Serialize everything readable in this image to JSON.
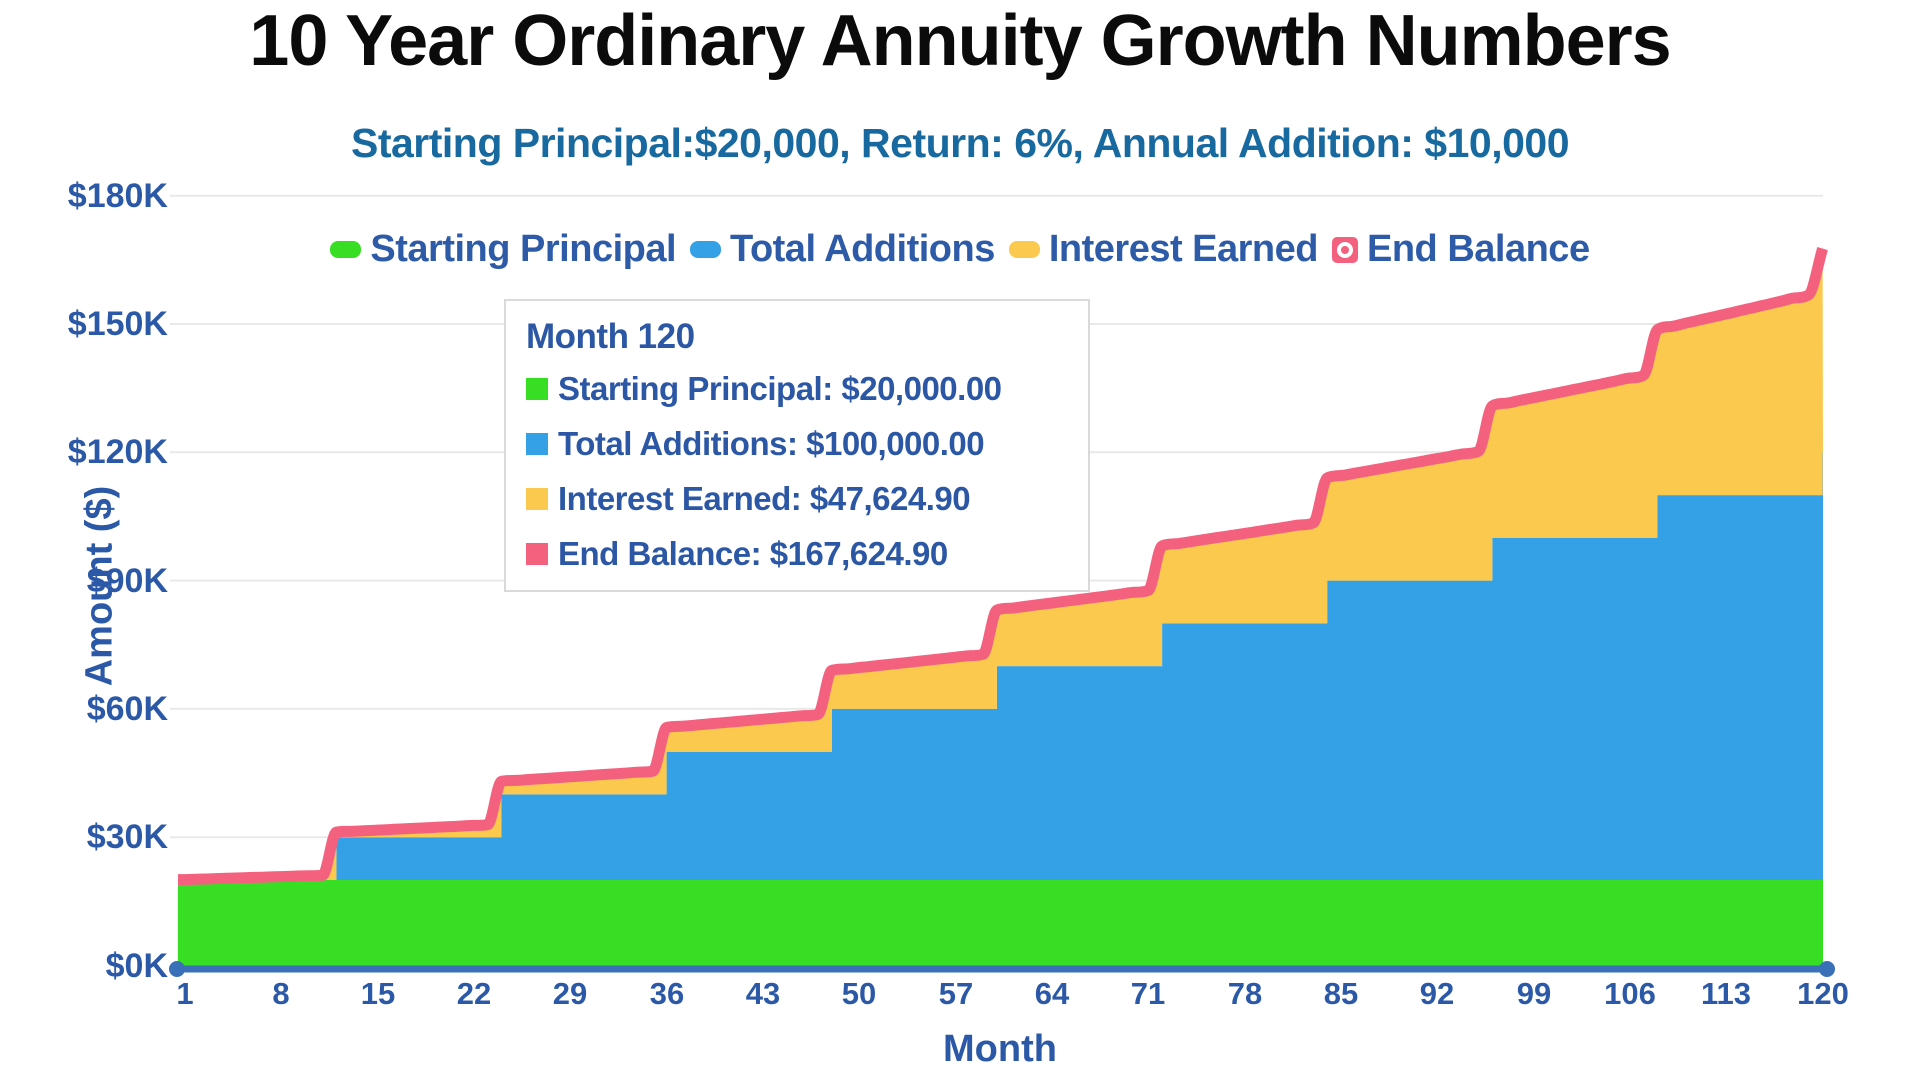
{
  "title": "10 Year Ordinary Annuity Growth Numbers",
  "subtitle": "Starting Principal:$20,000, Return: 6%, Annual Addition: $10,000",
  "legend": {
    "items": [
      {
        "label": "Starting Principal",
        "color": "#37de23",
        "marker": "pill"
      },
      {
        "label": "Total Additions",
        "color": "#34a1e7",
        "marker": "pill"
      },
      {
        "label": "Interest Earned",
        "color": "#fbc94d",
        "marker": "pill"
      },
      {
        "label": "End Balance",
        "color": "#f4617f",
        "marker": "square-ring"
      }
    ]
  },
  "tooltip": {
    "title": "Month 120",
    "rows": [
      {
        "text": "Starting Principal: $20,000.00",
        "color": "#37de23"
      },
      {
        "text": "Total Additions: $100,000.00",
        "color": "#34a1e7"
      },
      {
        "text": "Interest Earned: $47,624.90",
        "color": "#fbc94d"
      },
      {
        "text": "End Balance: $167,624.90",
        "color": "#f4617f"
      }
    ]
  },
  "axes": {
    "x_title": "Month",
    "y_title": "Amount ($)",
    "x_ticks": [
      1,
      8,
      15,
      22,
      29,
      36,
      43,
      50,
      57,
      64,
      71,
      78,
      85,
      92,
      99,
      106,
      113,
      120
    ],
    "y_tick_values": [
      0,
      30000,
      60000,
      90000,
      120000,
      150000,
      180000
    ],
    "y_tick_labels": [
      "$0K",
      "$30K",
      "$60K",
      "$90K",
      "$120K",
      "$150K",
      "$180K"
    ]
  },
  "colors": {
    "grid": "#e9e9e9",
    "axis_line": "#3a70b8",
    "text_blue": "#2c59a7",
    "subtitle_blue": "#17699f"
  },
  "chart_data": {
    "type": "area",
    "stacked": true,
    "grid": "horizontal",
    "legend_position": "top",
    "title": "10 Year Ordinary Annuity Growth Numbers",
    "subtitle": "Starting Principal:$20,000, Return: 6%, Annual Addition: $10,000",
    "xlabel": "Month",
    "ylabel": "Amount ($)",
    "xlim": [
      1,
      120
    ],
    "ylim": [
      0,
      180000
    ],
    "months": [
      1,
      2,
      3,
      4,
      5,
      6,
      7,
      8,
      9,
      10,
      11,
      12,
      13,
      14,
      15,
      16,
      17,
      18,
      19,
      20,
      21,
      22,
      23,
      24,
      25,
      26,
      27,
      28,
      29,
      30,
      31,
      32,
      33,
      34,
      35,
      36,
      37,
      38,
      39,
      40,
      41,
      42,
      43,
      44,
      45,
      46,
      47,
      48,
      49,
      50,
      51,
      52,
      53,
      54,
      55,
      56,
      57,
      58,
      59,
      60,
      61,
      62,
      63,
      64,
      65,
      66,
      67,
      68,
      69,
      70,
      71,
      72,
      73,
      74,
      75,
      76,
      77,
      78,
      79,
      80,
      81,
      82,
      83,
      84,
      85,
      86,
      87,
      88,
      89,
      90,
      91,
      92,
      93,
      94,
      95,
      96,
      97,
      98,
      99,
      100,
      101,
      102,
      103,
      104,
      105,
      106,
      107,
      108,
      109,
      110,
      111,
      112,
      113,
      114,
      115,
      116,
      117,
      118,
      119,
      120
    ],
    "series": [
      {
        "name": "Starting Principal",
        "color": "#37de23",
        "constant": 20000
      },
      {
        "name": "Total Additions",
        "color": "#34a1e7",
        "step": true,
        "values": [
          0,
          0,
          0,
          0,
          0,
          0,
          0,
          0,
          0,
          0,
          0,
          10000,
          10000,
          10000,
          10000,
          10000,
          10000,
          10000,
          10000,
          10000,
          10000,
          10000,
          10000,
          20000,
          20000,
          20000,
          20000,
          20000,
          20000,
          20000,
          20000,
          20000,
          20000,
          20000,
          20000,
          30000,
          30000,
          30000,
          30000,
          30000,
          30000,
          30000,
          30000,
          30000,
          30000,
          30000,
          30000,
          40000,
          40000,
          40000,
          40000,
          40000,
          40000,
          40000,
          40000,
          40000,
          40000,
          40000,
          40000,
          50000,
          50000,
          50000,
          50000,
          50000,
          50000,
          50000,
          50000,
          50000,
          50000,
          50000,
          50000,
          60000,
          60000,
          60000,
          60000,
          60000,
          60000,
          60000,
          60000,
          60000,
          60000,
          60000,
          60000,
          70000,
          70000,
          70000,
          70000,
          70000,
          70000,
          70000,
          70000,
          70000,
          70000,
          70000,
          70000,
          80000,
          80000,
          80000,
          80000,
          80000,
          80000,
          80000,
          80000,
          80000,
          80000,
          80000,
          80000,
          90000,
          90000,
          90000,
          90000,
          90000,
          90000,
          90000,
          90000,
          90000,
          90000,
          90000,
          90000,
          100000
        ]
      },
      {
        "name": "Interest Earned",
        "color": "#fbc94d",
        "values": [
          97.35,
          195.18,
          293.48,
          392.26,
          491.52,
          591.26,
          691.49,
          792.21,
          893.42,
          995.12,
          1097.32,
          1200.0,
          1351.87,
          1504.47,
          1657.82,
          1811.92,
          1966.76,
          2122.37,
          2278.72,
          2435.85,
          2593.73,
          2752.39,
          2911.82,
          3072.0,
          3281.66,
          3492.35,
          3704.07,
          3916.8,
          4130.58,
          4345.4,
          4561.27,
          4778.19,
          4996.16,
          5215.2,
          5435.31,
          5656.32,
          5927.24,
          6199.48,
          6473.04,
          6747.94,
          7024.17,
          7301.75,
          7580.68,
          7860.97,
          8142.62,
          8425.65,
          8710.05,
          8995.7,
          9331.53,
          9668.99,
          10008.09,
          10348.85,
          10691.26,
          11035.34,
          11381.1,
          11728.54,
          12077.67,
          12428.5,
          12781.04,
          13135.44,
          13540.1,
          13946.73,
          14355.33,
          14765.93,
          15178.52,
          15593.12,
          16009.74,
          16428.38,
          16849.06,
          17271.79,
          17696.58,
          18123.57,
          18601.19,
          19081.13,
          19563.41,
          20048.03,
          20535.02,
          21024.37,
          21516.11,
          22010.24,
          22506.78,
          23005.73,
          23507.11,
          24010.98,
          24565.93,
          25123.57,
          25683.93,
          26247.02,
          26812.85,
          27381.43,
          27952.78,
          28526.91,
          29103.83,
          29683.57,
          30266.12,
          30851.64,
          31488.57,
          32128.6,
          32771.75,
          33418.02,
          34067.45,
          34720.03,
          35375.79,
          36034.74,
          36696.9,
          37362.28,
          38030.9,
          38702.74,
          39426.55,
          40153.89,
          40884.77,
          41619.21,
          42357.22,
          43098.82,
          43844.03,
          44592.87,
          45345.36,
          46101.51,
          46861.34,
          47624.9
        ]
      }
    ],
    "line": {
      "name": "End Balance",
      "color": "#f4617f",
      "values": [
        20097.35,
        20195.18,
        20293.48,
        20392.26,
        20491.52,
        20591.26,
        20691.49,
        20792.21,
        20893.42,
        20995.12,
        21097.32,
        31200.0,
        31351.87,
        31504.47,
        31657.82,
        31811.92,
        31966.76,
        32122.37,
        32278.72,
        32435.85,
        32593.73,
        32752.39,
        32911.82,
        43072.0,
        43281.66,
        43492.35,
        43704.07,
        43916.8,
        44130.58,
        44345.4,
        44561.27,
        44778.19,
        44996.16,
        45215.2,
        45435.31,
        55656.32,
        55927.24,
        56199.48,
        56473.04,
        56747.94,
        57024.17,
        57301.75,
        57580.68,
        57860.97,
        58142.62,
        58425.65,
        58710.05,
        68995.7,
        69331.53,
        69668.99,
        70008.09,
        70348.85,
        70691.26,
        71035.34,
        71381.1,
        71728.54,
        72077.67,
        72428.5,
        72781.04,
        83135.44,
        83540.1,
        83946.73,
        84355.33,
        84765.93,
        85178.52,
        85593.12,
        86009.74,
        86428.38,
        86849.06,
        87271.79,
        87696.58,
        98123.57,
        98601.19,
        99081.13,
        99563.41,
        100048.03,
        100535.02,
        101024.37,
        101516.11,
        102010.24,
        102506.78,
        103005.73,
        103507.11,
        114010.98,
        114565.93,
        115123.57,
        115683.93,
        116247.02,
        116812.85,
        117381.43,
        117952.78,
        118526.91,
        119103.83,
        119683.57,
        120266.12,
        130851.64,
        131488.57,
        132128.6,
        132771.75,
        133418.02,
        134067.45,
        134720.03,
        135375.79,
        136034.74,
        136696.9,
        137362.28,
        138030.9,
        148702.74,
        149426.55,
        150153.89,
        150884.77,
        151619.21,
        152357.22,
        153098.82,
        153844.03,
        154592.87,
        155345.36,
        156101.51,
        156861.34,
        167624.9
      ]
    }
  }
}
